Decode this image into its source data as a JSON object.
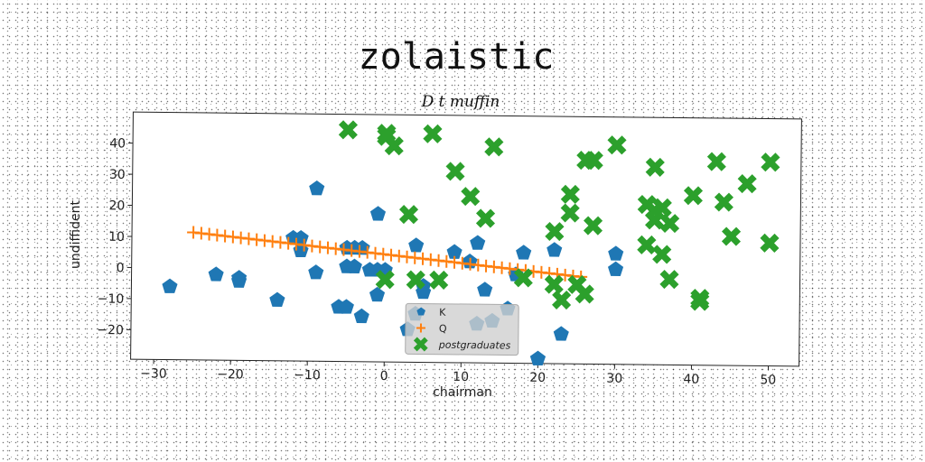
{
  "chart_data": {
    "type": "scatter",
    "title": "zolaistic",
    "subtitle": "D t muffin",
    "xlabel": "chairman",
    "ylabel": "undiffident",
    "xlim": [
      -33,
      54
    ],
    "ylim": [
      -29.5,
      50
    ],
    "xticks": [
      -30,
      -20,
      -10,
      0,
      10,
      20,
      30,
      40,
      50
    ],
    "yticks": [
      -20,
      -10,
      0,
      10,
      20,
      30,
      40
    ],
    "grid": false,
    "legend_position": "lower center",
    "series": [
      {
        "name": "K",
        "marker": "pentagon",
        "color": "#1f77b4",
        "points": [
          [
            -28,
            -6
          ],
          [
            -22,
            -2
          ],
          [
            -19,
            -4
          ],
          [
            -19,
            -3
          ],
          [
            -14,
            -10
          ],
          [
            -12,
            10
          ],
          [
            -11,
            6
          ],
          [
            -11,
            10
          ],
          [
            -9,
            -1
          ],
          [
            -9,
            26
          ],
          [
            -6,
            -12
          ],
          [
            -5,
            -12
          ],
          [
            -5,
            1
          ],
          [
            -5,
            7
          ],
          [
            -4,
            1
          ],
          [
            -4,
            7
          ],
          [
            -3,
            -15
          ],
          [
            -3,
            7
          ],
          [
            -2,
            0
          ],
          [
            -1,
            0
          ],
          [
            -1,
            -8
          ],
          [
            -1,
            18
          ],
          [
            0,
            0
          ],
          [
            3,
            -19
          ],
          [
            4,
            -14
          ],
          [
            4,
            8
          ],
          [
            5,
            -5
          ],
          [
            5,
            -7
          ],
          [
            9,
            6
          ],
          [
            11,
            3
          ],
          [
            12,
            9
          ],
          [
            12,
            -17
          ],
          [
            13,
            -6
          ],
          [
            14,
            -16
          ],
          [
            16,
            -12
          ],
          [
            17,
            -1
          ],
          [
            18,
            6
          ],
          [
            20,
            -28
          ],
          [
            22,
            7
          ],
          [
            23,
            -20
          ],
          [
            30,
            6
          ],
          [
            30,
            1
          ]
        ]
      },
      {
        "name": "Q",
        "marker": "plus",
        "color": "#ff7f0e",
        "line_from": [
          -25,
          11.5
        ],
        "line_to": [
          25.5,
          -1.5
        ],
        "count": 50
      },
      {
        "name": "postgraduates",
        "marker": "x",
        "color": "#2ca02c",
        "points": [
          [
            -5,
            45
          ],
          [
            0,
            44
          ],
          [
            0,
            43
          ],
          [
            1,
            40
          ],
          [
            6,
            44
          ],
          [
            9,
            32
          ],
          [
            11,
            24
          ],
          [
            13,
            17
          ],
          [
            14,
            40
          ],
          [
            3,
            18
          ],
          [
            0,
            -3
          ],
          [
            4,
            -3
          ],
          [
            7,
            -3
          ],
          [
            18,
            -2
          ],
          [
            22,
            -4
          ],
          [
            22,
            13
          ],
          [
            23,
            -9
          ],
          [
            24,
            19
          ],
          [
            24,
            25
          ],
          [
            25,
            -4
          ],
          [
            26,
            -7
          ],
          [
            26,
            36
          ],
          [
            27,
            15
          ],
          [
            27,
            36
          ],
          [
            30,
            41
          ],
          [
            34,
            9
          ],
          [
            34,
            22
          ],
          [
            35,
            34
          ],
          [
            35,
            17
          ],
          [
            35,
            20
          ],
          [
            36,
            6
          ],
          [
            36,
            21
          ],
          [
            37,
            16
          ],
          [
            37,
            -2
          ],
          [
            40,
            25
          ],
          [
            41,
            -9
          ],
          [
            41,
            -8
          ],
          [
            43,
            36
          ],
          [
            44,
            23
          ],
          [
            45,
            12
          ],
          [
            47,
            29
          ],
          [
            50,
            36
          ],
          [
            50,
            10
          ]
        ]
      }
    ]
  }
}
